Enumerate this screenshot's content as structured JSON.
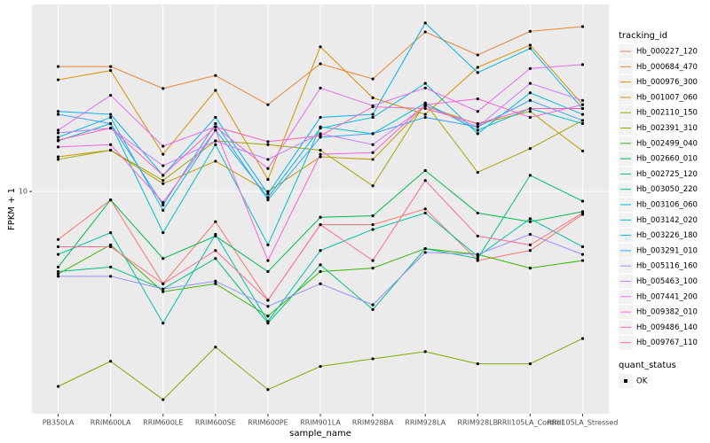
{
  "chart_data": {
    "type": "line",
    "x_label": "sample_name",
    "y_label": "FPKM + 1",
    "categories": [
      "PB350LA",
      "RRIM600LA",
      "RRIM600LE",
      "RRIM600SE",
      "RRIM600PE",
      "RRIM901LA",
      "RRIM928BA",
      "RRIM928LA",
      "RRIM928LB",
      "RRII105LA_Control",
      "RRII105LA_Stressed"
    ],
    "log_scale": true,
    "ylim": [
      1.46,
      50.5
    ],
    "yticks": [
      10
    ],
    "grid": true,
    "legend_title": "tracking_id",
    "legend_position": "right",
    "legend2_title": "quant_status",
    "legend2_labels": [
      "OK"
    ],
    "point_color": "#000000",
    "series": [
      {
        "name": "Hb_000227_120",
        "color": "#F8766D",
        "values": [
          6.6,
          9.3,
          4.5,
          7.7,
          3.9,
          7.5,
          7.5,
          8.6,
          5.5,
          6.0,
          8.2
        ]
      },
      {
        "name": "Hb_000684_470",
        "color": "#EA8331",
        "values": [
          29.5,
          29.5,
          24.4,
          27.3,
          21.2,
          30.2,
          26.5,
          39.8,
          32.6,
          40.0,
          41.7
        ]
      },
      {
        "name": "Hb_000976_300",
        "color": "#D89000",
        "values": [
          26.3,
          28.5,
          13.8,
          24.0,
          11.1,
          35.0,
          22.5,
          19.5,
          29.3,
          35.5,
          21.2
        ]
      },
      {
        "name": "Hb_001007_060",
        "color": "#C09B00",
        "values": [
          13.5,
          14.3,
          10.7,
          13.0,
          10.0,
          13.5,
          13.2,
          21.0,
          17.9,
          20.0,
          14.2
        ]
      },
      {
        "name": "Hb_002110_150",
        "color": "#A3A500",
        "values": [
          13.2,
          14.3,
          11.0,
          15.5,
          15.0,
          14.3,
          10.5,
          21.5,
          11.8,
          14.5,
          18.5
        ]
      },
      {
        "name": "Hb_002391_310",
        "color": "#7CAE00",
        "values": [
          1.85,
          2.3,
          1.65,
          2.6,
          1.8,
          2.2,
          2.35,
          2.5,
          2.25,
          2.25,
          2.8
        ]
      },
      {
        "name": "Hb_002499_040",
        "color": "#39B600",
        "values": [
          4.9,
          6.3,
          4.2,
          4.5,
          3.4,
          5.0,
          5.15,
          6.1,
          5.8,
          5.15,
          5.5
        ]
      },
      {
        "name": "Hb_002660_010",
        "color": "#00BB4E",
        "values": [
          5.2,
          9.3,
          5.6,
          6.8,
          5.0,
          8.0,
          8.1,
          12.0,
          8.3,
          7.7,
          8.4
        ]
      },
      {
        "name": "Hb_002725_120",
        "color": "#00BF7D",
        "values": [
          5.0,
          5.2,
          4.3,
          5.6,
          3.2,
          5.3,
          3.6,
          6.1,
          5.6,
          11.5,
          9.2
        ]
      },
      {
        "name": "Hb_003050_220",
        "color": "#00C1A3",
        "values": [
          5.8,
          7.0,
          3.2,
          6.9,
          3.25,
          6.0,
          7.2,
          8.3,
          5.7,
          7.9,
          6.2
        ]
      },
      {
        "name": "Hb_003106_060",
        "color": "#00BFC4",
        "values": [
          15.5,
          18.0,
          7.0,
          15.0,
          6.3,
          17.5,
          16.5,
          21.5,
          17.0,
          20.5,
          18.0
        ]
      },
      {
        "name": "Hb_003142_020",
        "color": "#00BAE0",
        "values": [
          16.0,
          19.0,
          8.5,
          17.0,
          9.5,
          17.3,
          19.0,
          25.5,
          16.5,
          23.5,
          19.5
        ]
      },
      {
        "name": "Hb_003226_180",
        "color": "#00B0F6",
        "values": [
          20.0,
          19.5,
          11.5,
          19.0,
          9.8,
          19.0,
          19.5,
          43.0,
          28.0,
          34.5,
          20.5
        ]
      },
      {
        "name": "Hb_003291_010",
        "color": "#35A2FF",
        "values": [
          19.5,
          18.0,
          8.9,
          18.0,
          9.3,
          16.0,
          16.5,
          19.0,
          17.5,
          22.0,
          18.5
        ]
      },
      {
        "name": "Hb_005116_160",
        "color": "#9590FF",
        "values": [
          4.8,
          4.8,
          4.3,
          4.6,
          3.7,
          4.5,
          3.75,
          5.9,
          5.8,
          6.9,
          5.8
        ]
      },
      {
        "name": "Hb_005463_100",
        "color": "#C77CFF",
        "values": [
          16.6,
          17.3,
          12.5,
          15.5,
          13.2,
          16.5,
          15.0,
          21.0,
          17.5,
          25.5,
          22.0
        ]
      },
      {
        "name": "Hb_007441_200",
        "color": "#E76BF3",
        "values": [
          17.0,
          23.0,
          14.8,
          17.5,
          12.2,
          24.5,
          21.0,
          24.5,
          20.0,
          29.0,
          30.0
        ]
      },
      {
        "name": "Hb_009382_010",
        "color": "#FA62DB",
        "values": [
          14.7,
          15.0,
          9.1,
          17.0,
          5.5,
          13.8,
          14.0,
          21.2,
          22.3,
          19.0,
          21.2
        ]
      },
      {
        "name": "Hb_009486_140",
        "color": "#FF62BC",
        "values": [
          15.6,
          17.3,
          11.5,
          17.5,
          15.4,
          16.2,
          20.8,
          20.5,
          18.0,
          20.5,
          20.5
        ]
      },
      {
        "name": "Hb_009767_110",
        "color": "#FF6C91",
        "values": [
          6.2,
          6.2,
          4.5,
          6.0,
          3.9,
          7.5,
          5.5,
          11.0,
          6.8,
          6.3,
          8.3
        ]
      }
    ]
  }
}
